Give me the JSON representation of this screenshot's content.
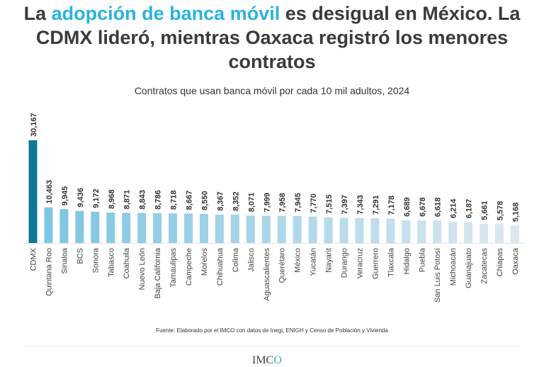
{
  "title": {
    "part1": "La ",
    "highlight": "adopción de banca móvil",
    "part2": " es desigual en México. La CDMX lideró, mientras Oaxaca registró los menores contratos"
  },
  "colors": {
    "title_highlight": "#2bb3dc",
    "leader_bar": "#0e7896",
    "bar_start": "#7ec6e2",
    "bar_end": "#dbe8f2",
    "text": "#3a3a3a"
  },
  "chart_data": {
    "type": "bar",
    "subtitle": "Contratos que usan banca móvil por cada 10 mil adultos, 2024",
    "categories": [
      "CDMX",
      "Quintana Roo",
      "Sinaloa",
      "BCS",
      "Sonora",
      "Tabasco",
      "Coahuila",
      "Nuevo León",
      "Baja California",
      "Tamaulipas",
      "Campeche",
      "Morelos",
      "Chihuahua",
      "Colima",
      "Jalisco",
      "Aguascalientes",
      "Querétaro",
      "México",
      "Yucatán",
      "Nayarit",
      "Durango",
      "Veracruz",
      "Guerrero",
      "Tlaxcala",
      "Hidalgo",
      "Puebla",
      "San Luis Potosí",
      "Michoacán",
      "Guanajuato",
      "Zacatecas",
      "Chiapas",
      "Oaxaca"
    ],
    "values": [
      30167,
      10463,
      9945,
      9436,
      9172,
      8968,
      8871,
      8843,
      8786,
      8718,
      8667,
      8550,
      8367,
      8352,
      8071,
      7999,
      7958,
      7945,
      7770,
      7515,
      7397,
      7343,
      7291,
      7178,
      6689,
      6678,
      6618,
      6214,
      6187,
      5661,
      5578,
      5168
    ],
    "value_labels": [
      "30,167",
      "10,463",
      "9,945",
      "9,436",
      "9,172",
      "8,968",
      "8,871",
      "8,843",
      "8,786",
      "8,718",
      "8,667",
      "8,550",
      "8,367",
      "8,352",
      "8,071",
      "7,999",
      "7,958",
      "7,945",
      "7,770",
      "7,515",
      "7,397",
      "7,343",
      "7,291",
      "7,178",
      "6,689",
      "6,678",
      "6,618",
      "6,214",
      "6,187",
      "5,661",
      "5,578",
      "5,168"
    ],
    "ylim": [
      0,
      30167
    ],
    "grid": false,
    "legend": "none"
  },
  "source": "Fuente: Elaborado por el IMCO con datos de Inegi, ENIGH y Censo de Población y Vivienda",
  "logo_text": "IMCO"
}
